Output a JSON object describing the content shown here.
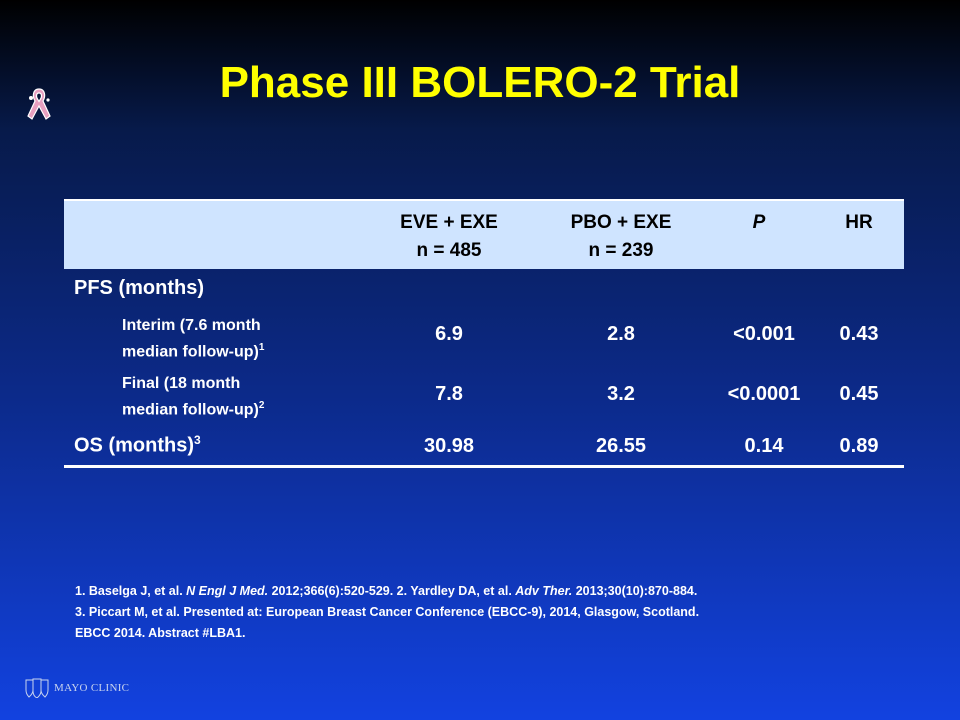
{
  "slide": {
    "title": "Phase III BOLERO-2 Trial"
  },
  "table": {
    "headers": {
      "col1_line1": "EVE + EXE",
      "col1_line2": "n = 485",
      "col2_line1": "PBO + EXE",
      "col2_line2": "n = 239",
      "col3": "P",
      "col4": "HR"
    },
    "pfs_label": "PFS (months)",
    "rows": [
      {
        "label_line1": "Interim (7.6 month",
        "label_line2": "median follow-up)",
        "sup": "1",
        "eve": "6.9",
        "pbo": "2.8",
        "p": "<0.001",
        "hr": "0.43"
      },
      {
        "label_line1": "Final (18 month",
        "label_line2": "median follow-up)",
        "sup": "2",
        "eve": "7.8",
        "pbo": "3.2",
        "p": "<0.0001",
        "hr": "0.45"
      }
    ],
    "os": {
      "label": "OS (months)",
      "sup": "3",
      "eve": "30.98",
      "pbo": "26.55",
      "p": "0.14",
      "hr": "0.89"
    }
  },
  "footnotes": {
    "ref1_prefix": "1. Baselga J, et al. ",
    "ref1_journal": "N Engl J Med.",
    "ref1_rest": " 2012;366(6):520-529. 2. Yardley DA, et al. ",
    "ref2_journal": "Adv Ther.",
    "ref2_rest": " 2013;30(10):870-884.",
    "line2": "3. Piccart M, et al. Presented at: European Breast Cancer Conference (EBCC-9), 2014, Glasgow, Scotland.",
    "line3": "EBCC 2014. Abstract #LBA1."
  },
  "logo": {
    "text": "MAYO CLINIC"
  },
  "colors": {
    "title": "#ffff00",
    "header_bg": "#cfe4ff",
    "ribbon": "#e8a0c0"
  },
  "icons": {
    "ribbon": "pink-ribbon-icon",
    "logo": "mayo-shield-icon"
  }
}
